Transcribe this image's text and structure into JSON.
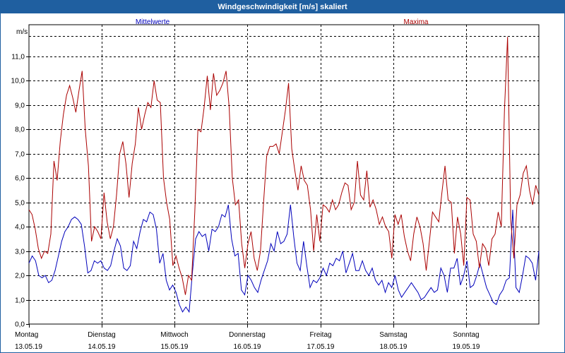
{
  "window": {
    "title": "Windgeschwindigkeit [m/s] skaliert"
  },
  "chart_data": {
    "type": "line",
    "title": "Windgeschwindigkeit [m/s] skaliert",
    "ylabel": "m/s",
    "xlabel": "",
    "ylim": [
      0,
      12
    ],
    "xlim": [
      0,
      7
    ],
    "yticks": [
      "0.0",
      "1.0",
      "2.0",
      "3.0",
      "4.0",
      "5.0",
      "6.0",
      "7.0",
      "8.0",
      "9.0",
      "10.0",
      "11.0"
    ],
    "yticks_labels": [
      "0,0",
      "1,0",
      "2,0",
      "3,0",
      "4,0",
      "5,0",
      "6,0",
      "7,0",
      "8,0",
      "9,0",
      "10,0",
      "11,0"
    ],
    "xticks": [
      {
        "day": "Montag",
        "date": "13.05.19"
      },
      {
        "day": "Dienstag",
        "date": "14.05.19"
      },
      {
        "day": "Mittwoch",
        "date": "15.05.19"
      },
      {
        "day": "Donnerstag",
        "date": "16.05.19"
      },
      {
        "day": "Freitag",
        "date": "17.05.19"
      },
      {
        "day": "Samstag",
        "date": "18.05.19"
      },
      {
        "day": "Sonntag",
        "date": "19.05.19"
      }
    ],
    "grid": true,
    "legend_position": "top",
    "series": [
      {
        "name": "Mittelwerte",
        "color": "#0000bb",
        "values": [
          2.5,
          2.8,
          2.6,
          2.0,
          1.9,
          2.0,
          1.7,
          1.8,
          2.2,
          2.8,
          3.4,
          3.8,
          4.0,
          4.3,
          4.4,
          4.3,
          4.1,
          3.2,
          2.1,
          2.2,
          2.6,
          2.5,
          2.6,
          2.3,
          2.2,
          2.4,
          3.0,
          3.5,
          3.2,
          2.3,
          2.2,
          2.4,
          3.4,
          3.1,
          3.8,
          4.3,
          4.2,
          4.6,
          4.5,
          3.9,
          2.5,
          2.9,
          1.8,
          1.4,
          1.6,
          1.3,
          0.8,
          0.5,
          0.7,
          0.5,
          2.1,
          3.5,
          3.8,
          3.6,
          3.7,
          3.0,
          3.9,
          3.8,
          4.0,
          4.5,
          4.4,
          4.9,
          3.5,
          2.8,
          2.9,
          1.4,
          1.2,
          2.0,
          1.8,
          1.5,
          1.3,
          1.8,
          2.2,
          2.6,
          3.3,
          3.0,
          3.8,
          3.3,
          3.4,
          3.7,
          4.9,
          3.6,
          2.5,
          2.2,
          3.4,
          2.4,
          1.5,
          1.8,
          1.7,
          1.9,
          2.3,
          2.0,
          2.5,
          2.4,
          2.7,
          2.6,
          3.0,
          2.1,
          2.5,
          2.9,
          2.2,
          2.2,
          2.6,
          2.2,
          2.0,
          2.3,
          1.8,
          1.6,
          1.8,
          1.3,
          1.7,
          1.5,
          2.0,
          1.4,
          1.1,
          1.3,
          1.5,
          1.7,
          1.5,
          1.3,
          1.0,
          1.1,
          1.3,
          1.5,
          1.3,
          1.4,
          2.3,
          2.0,
          1.3,
          2.3,
          2.3,
          2.7,
          1.6,
          2.0,
          2.6,
          1.5,
          1.6,
          2.0,
          2.5,
          2.0,
          1.5,
          1.2,
          0.9,
          0.8,
          1.2,
          1.4,
          1.8,
          1.9,
          4.7,
          1.5,
          1.3,
          2.0,
          2.8,
          2.7,
          2.5,
          1.8,
          3.0
        ],
        "values_note": "hourly-ish samples across 7 days, estimated from gridlines"
      },
      {
        "name": "Maxima",
        "color": "#aa0000",
        "values": [
          4.7,
          4.5,
          3.9,
          3.1,
          2.7,
          3.0,
          2.9,
          3.7,
          6.7,
          5.9,
          7.5,
          8.6,
          9.4,
          9.8,
          9.3,
          8.7,
          9.6,
          10.4,
          8.0,
          6.5,
          3.4,
          4.0,
          3.8,
          3.5,
          5.4,
          4.2,
          3.5,
          4.0,
          5.3,
          7.0,
          7.5,
          6.6,
          5.2,
          6.6,
          7.4,
          8.9,
          8.0,
          8.6,
          9.1,
          8.9,
          10.0,
          9.2,
          9.1,
          6.0,
          5.0,
          4.3,
          2.4,
          2.8,
          2.3,
          1.9,
          1.2,
          2.0,
          1.8,
          4.6,
          8.0,
          7.9,
          8.9,
          10.2,
          8.8,
          10.3,
          9.4,
          9.6,
          9.9,
          10.4,
          8.9,
          6.0,
          4.9,
          5.1,
          3.3,
          2.3,
          3.3,
          3.8,
          2.7,
          2.2,
          3.0,
          5.0,
          6.9,
          7.3,
          7.3,
          7.4,
          7.0,
          7.9,
          8.8,
          9.9,
          7.2,
          6.3,
          5.5,
          6.5,
          5.9,
          5.7,
          4.7,
          3.0,
          4.5,
          3.4,
          4.9,
          4.8,
          4.6,
          5.1,
          4.7,
          4.9,
          5.4,
          5.8,
          5.7,
          4.7,
          5.0,
          6.7,
          5.3,
          5.1,
          6.3,
          4.8,
          5.1,
          4.7,
          4.1,
          4.4,
          4.0,
          3.8,
          2.7,
          4.5,
          4.1,
          4.5,
          3.6,
          3.0,
          2.6,
          3.7,
          4.4,
          4.0,
          3.3,
          2.2,
          3.4,
          4.6,
          4.4,
          4.2,
          5.4,
          6.5,
          5.1,
          5.0,
          2.9,
          4.4,
          3.7,
          2.4,
          5.2,
          5.1,
          3.7,
          3.4,
          2.3,
          3.3,
          3.1,
          2.4,
          3.5,
          3.7,
          4.6,
          4.0,
          8.8,
          11.8,
          4.3,
          2.7,
          4.9,
          5.3,
          6.2,
          6.5,
          5.5,
          4.9,
          5.7,
          5.3
        ]
      }
    ]
  }
}
